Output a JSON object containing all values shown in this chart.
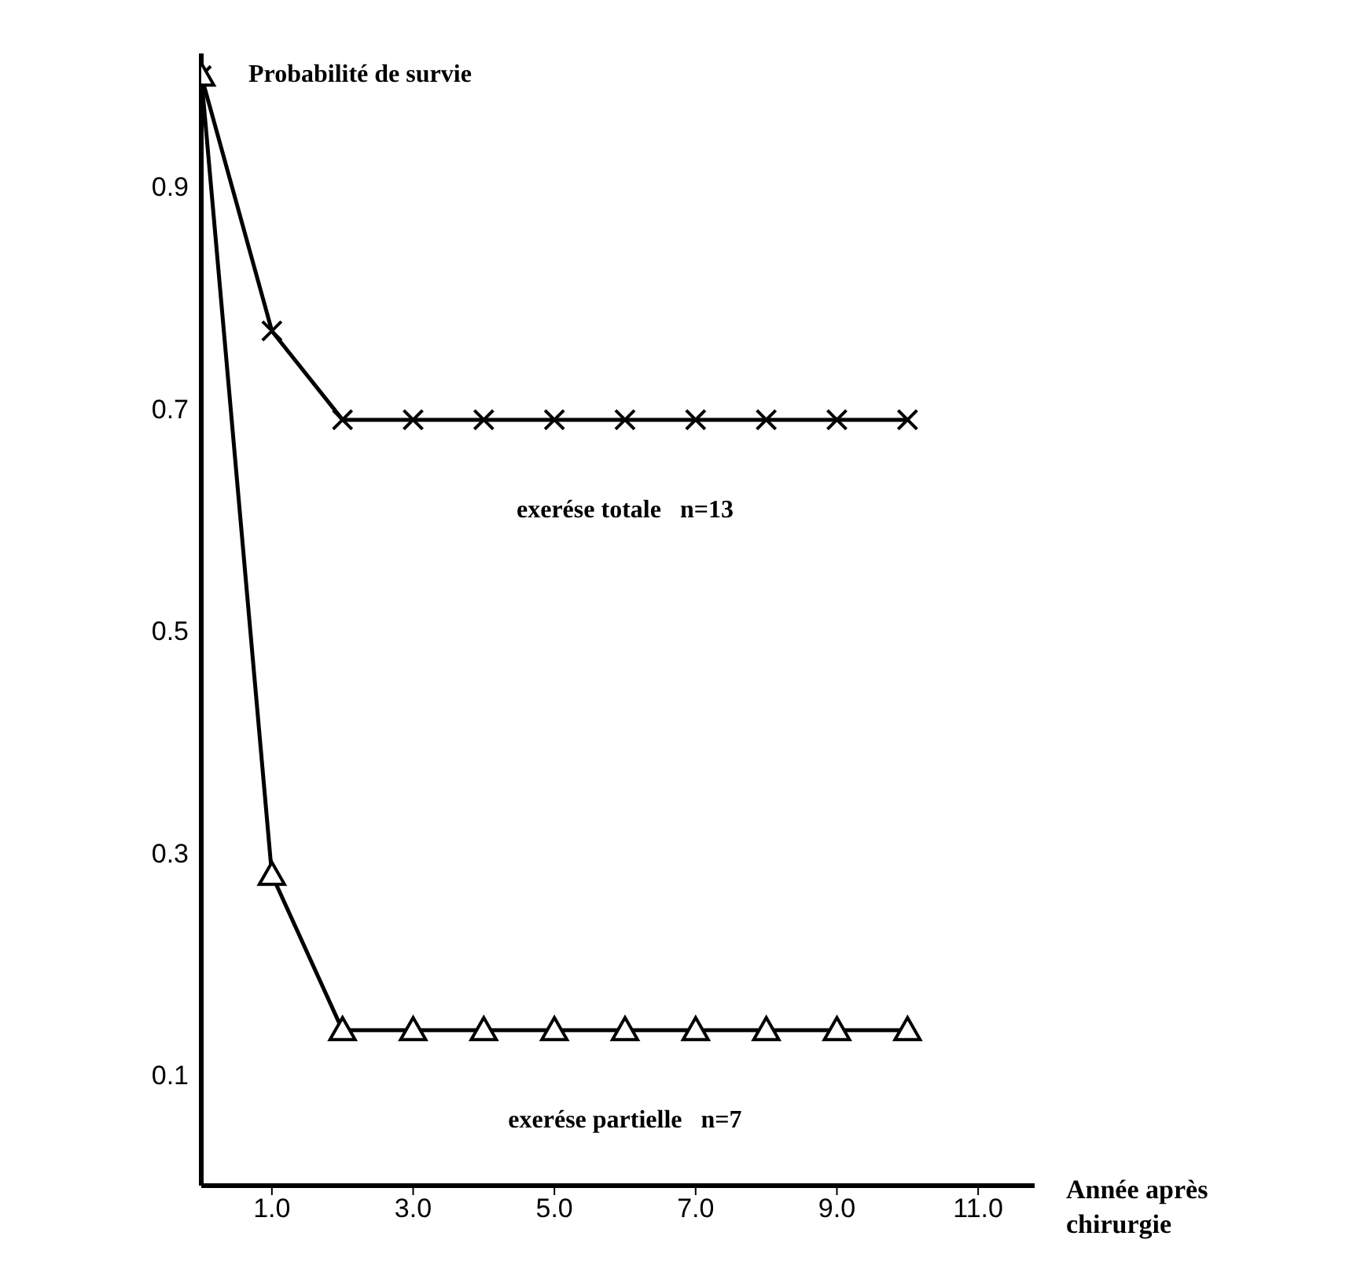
{
  "chart_data": {
    "type": "line",
    "ylabel": "Probabilité de survie",
    "xlabel": "Année après chirurgie",
    "x": [
      0,
      1,
      2,
      3,
      4,
      5,
      6,
      7,
      8,
      9,
      10
    ],
    "series": [
      {
        "name": "exerése totale   n=13",
        "color": "#000000",
        "marker": "cross",
        "values": [
          1.0,
          0.77,
          0.69,
          0.69,
          0.69,
          0.69,
          0.69,
          0.69,
          0.69,
          0.69,
          0.69
        ]
      },
      {
        "name": "exerése partielle   n=7",
        "color": "#000000",
        "marker": "triangle",
        "values": [
          1.0,
          0.28,
          0.14,
          0.14,
          0.14,
          0.14,
          0.14,
          0.14,
          0.14,
          0.14,
          0.14
        ]
      }
    ],
    "xlim": [
      0,
      11.8
    ],
    "xticks": [
      {
        "value": 1,
        "label": "1.0"
      },
      {
        "value": 3,
        "label": "3.0"
      },
      {
        "value": 5,
        "label": "5.0"
      },
      {
        "value": 7,
        "label": "7.0"
      },
      {
        "value": 9,
        "label": "9.0"
      },
      {
        "value": 11,
        "label": "11.0"
      }
    ],
    "ylim": [
      0,
      1.02
    ],
    "yticks": [
      0.1,
      0.3,
      0.5,
      0.7,
      0.9
    ],
    "grid": false,
    "legend": false,
    "line_style": "solid"
  }
}
